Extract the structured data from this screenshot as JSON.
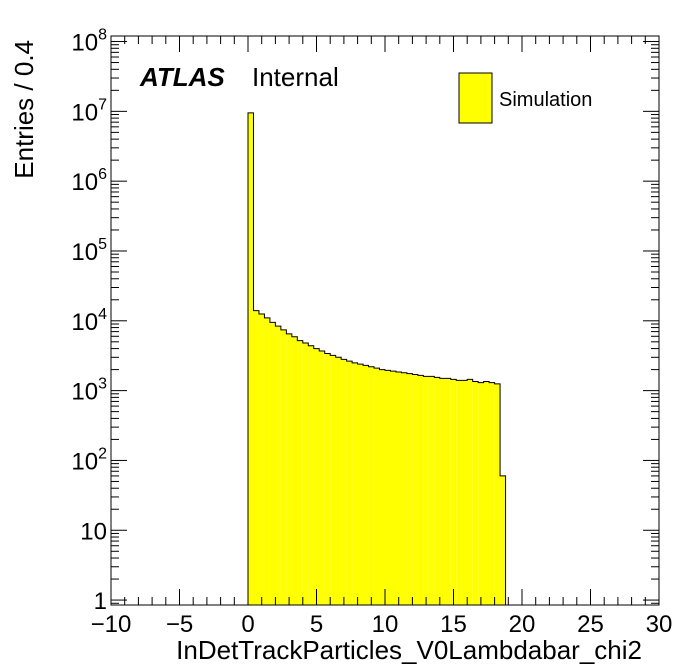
{
  "chart_data": {
    "type": "bar",
    "style": "histogram",
    "log_y": true,
    "bin_width": 0.4,
    "xlim": [
      -10,
      30
    ],
    "ylim": [
      0.85,
      120000000
    ],
    "xlabel": "InDetTrackParticles_V0Lambdabar_chi2",
    "ylabel": "Entries / 0.4",
    "fill_color": "#ffff00",
    "edge_color": "#000000",
    "x_ticks": [
      -10,
      -5,
      0,
      5,
      10,
      15,
      20,
      25,
      30
    ],
    "x_tick_labels": [
      "−10",
      "−5",
      "0",
      "5",
      "10",
      "15",
      "20",
      "25",
      "30"
    ],
    "y_ticks": [
      {
        "value": 1,
        "base": "1",
        "exp": ""
      },
      {
        "value": 10,
        "base": "10",
        "exp": ""
      },
      {
        "value": 100,
        "base": "10",
        "exp": "2"
      },
      {
        "value": 1000,
        "base": "10",
        "exp": "3"
      },
      {
        "value": 10000,
        "base": "10",
        "exp": "4"
      },
      {
        "value": 100000,
        "base": "10",
        "exp": "5"
      },
      {
        "value": 1000000,
        "base": "10",
        "exp": "6"
      },
      {
        "value": 10000000,
        "base": "10",
        "exp": "7"
      },
      {
        "value": 100000000,
        "base": "10",
        "exp": "8"
      }
    ],
    "bins_x_low": [
      0.0,
      0.4,
      0.8,
      1.2,
      1.6,
      2.0,
      2.4,
      2.8,
      3.2,
      3.6,
      4.0,
      4.4,
      4.8,
      5.2,
      5.6,
      6.0,
      6.4,
      6.8,
      7.2,
      7.6,
      8.0,
      8.4,
      8.8,
      9.2,
      9.6,
      10.0,
      10.4,
      10.8,
      11.2,
      11.6,
      12.0,
      12.4,
      12.8,
      13.2,
      13.6,
      14.0,
      14.4,
      14.8,
      15.2,
      15.6,
      16.0,
      16.4,
      16.8,
      17.2,
      17.6,
      18.0,
      18.4
    ],
    "values": [
      9500000,
      14000,
      12500,
      11000,
      9500,
      8400,
      7400,
      6500,
      5900,
      5200,
      4800,
      4400,
      4000,
      3700,
      3400,
      3200,
      3000,
      2800,
      2650,
      2500,
      2400,
      2300,
      2200,
      2100,
      2000,
      1950,
      1900,
      1850,
      1800,
      1750,
      1700,
      1650,
      1600,
      1600,
      1550,
      1500,
      1500,
      1450,
      1400,
      1400,
      1450,
      1350,
      1300,
      1350,
      1300,
      1250,
      60
    ],
    "atlas_label": "ATLAS",
    "atlas_status": "Internal",
    "legend": [
      {
        "name": "Simulation",
        "color": "#ffff00"
      }
    ],
    "legend_position": "top-right"
  }
}
